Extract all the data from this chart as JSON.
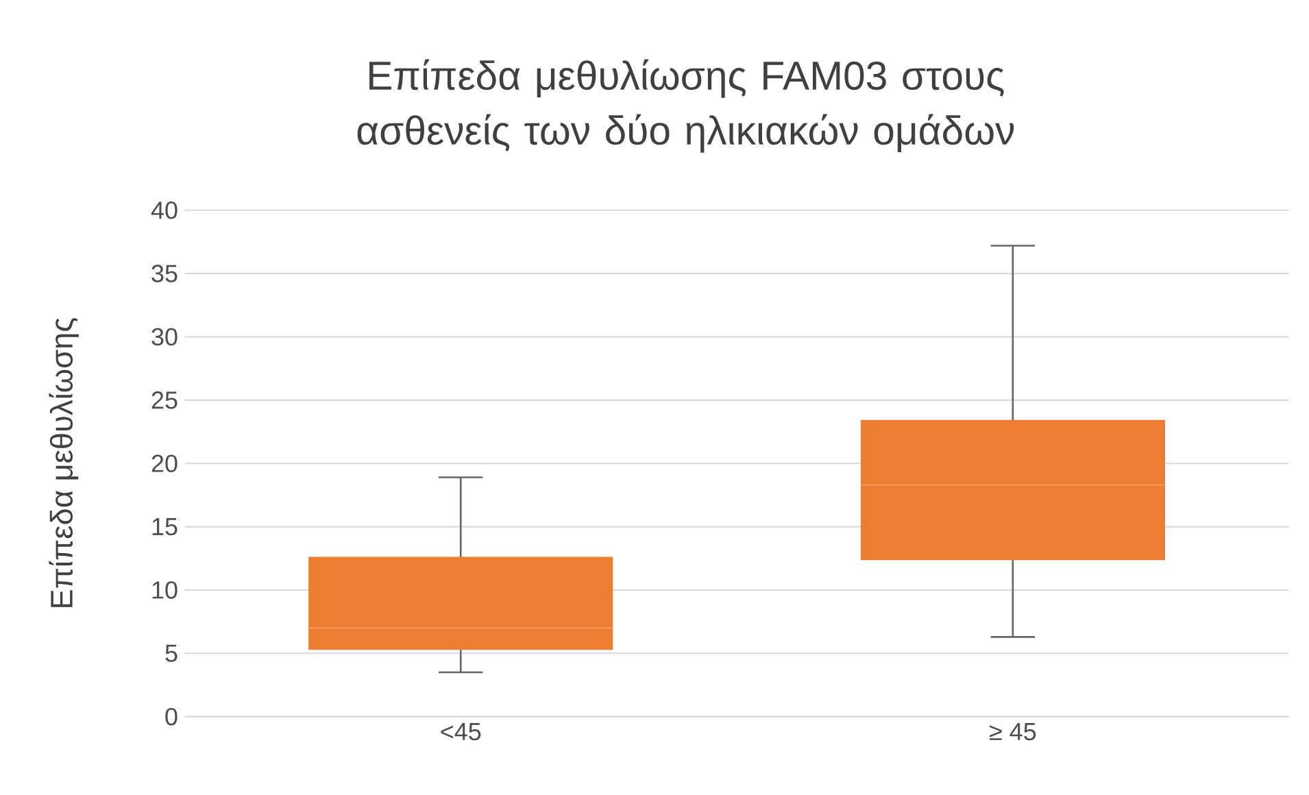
{
  "chart_data": {
    "type": "box",
    "title": "Επίπεδα μεθυλίωσης FAM03 στους ασθενείς των δύο ηλικιακών ομάδων",
    "ylabel": "Επίπεδα μεθυλίωσης",
    "categories": [
      "<45",
      "≥ 45"
    ],
    "boxes": [
      {
        "low": 3.5,
        "q1": 5.3,
        "median": 7.0,
        "q3": 12.6,
        "high": 18.9
      },
      {
        "low": 6.3,
        "q1": 12.4,
        "median": 18.3,
        "q3": 23.4,
        "high": 37.2
      }
    ],
    "color": "#ed7d31",
    "ylim": [
      0,
      40
    ],
    "yticks": [
      0,
      5,
      10,
      15,
      20,
      25,
      30,
      35,
      40
    ],
    "grid": "y"
  }
}
